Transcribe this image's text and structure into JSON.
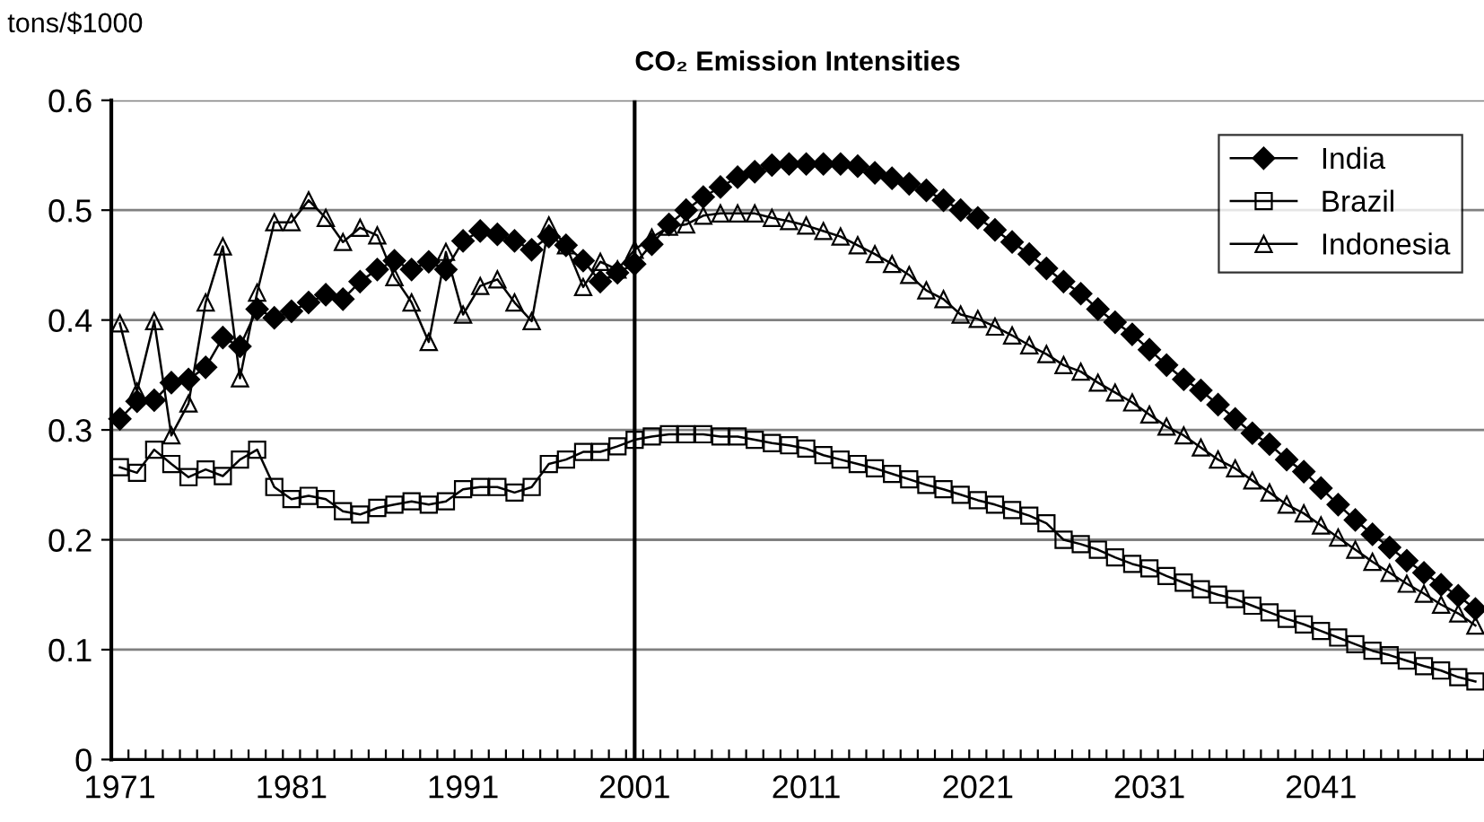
{
  "chart_data": {
    "type": "line",
    "title": "CO₂ Emission Intensities",
    "ylabel": "tons/$1000",
    "categories": [
      "1971",
      null,
      null,
      null,
      null,
      null,
      null,
      null,
      null,
      null,
      "1981",
      null,
      null,
      null,
      null,
      null,
      null,
      null,
      null,
      null,
      "1991",
      null,
      null,
      null,
      null,
      null,
      null,
      null,
      null,
      null,
      "2001",
      null,
      null,
      null,
      null,
      null,
      null,
      null,
      null,
      null,
      "2011",
      null,
      null,
      null,
      null,
      null,
      null,
      null,
      null,
      null,
      "2021",
      null,
      null,
      null,
      null,
      null,
      null,
      null,
      null,
      null,
      "2031",
      null,
      null,
      null,
      null,
      null,
      null,
      null,
      null,
      null,
      "2041",
      null,
      null,
      null,
      null,
      null,
      null,
      null,
      null,
      null
    ],
    "series": [
      {
        "name": "India",
        "color": "#000000",
        "marker": "diamond",
        "values": [
          0.31,
          0.326,
          0.327,
          0.343,
          0.346,
          0.357,
          0.384,
          0.376,
          0.41,
          0.402,
          0.408,
          0.416,
          0.423,
          0.419,
          0.435,
          0.446,
          0.454,
          0.446,
          0.453,
          0.446,
          0.472,
          0.481,
          0.478,
          0.472,
          0.464,
          0.476,
          0.468,
          0.454,
          0.435,
          0.443,
          0.451,
          0.469,
          0.487,
          0.5,
          0.512,
          0.521,
          0.53,
          0.535,
          0.541,
          0.542,
          0.542,
          0.542,
          0.542,
          0.54,
          0.534,
          0.529,
          0.524,
          0.518,
          0.509,
          0.5,
          0.493,
          0.482,
          0.471,
          0.46,
          0.447,
          0.435,
          0.424,
          0.41,
          0.398,
          0.387,
          0.373,
          0.359,
          0.346,
          0.336,
          0.323,
          0.31,
          0.297,
          0.287,
          0.273,
          0.262,
          0.247,
          0.232,
          0.218,
          0.205,
          0.193,
          0.181,
          0.17,
          0.159,
          0.149,
          0.137
        ]
      },
      {
        "name": "Brazil",
        "color": "#000000",
        "marker": "square",
        "values": [
          0.266,
          0.261,
          0.282,
          0.269,
          0.257,
          0.264,
          0.258,
          0.273,
          0.282,
          0.248,
          0.237,
          0.24,
          0.237,
          0.226,
          0.223,
          0.229,
          0.232,
          0.235,
          0.232,
          0.235,
          0.246,
          0.248,
          0.248,
          0.243,
          0.248,
          0.269,
          0.273,
          0.28,
          0.28,
          0.285,
          0.291,
          0.294,
          0.296,
          0.296,
          0.296,
          0.294,
          0.294,
          0.291,
          0.288,
          0.286,
          0.283,
          0.277,
          0.273,
          0.269,
          0.265,
          0.26,
          0.255,
          0.25,
          0.246,
          0.241,
          0.236,
          0.232,
          0.227,
          0.222,
          0.215,
          0.2,
          0.196,
          0.191,
          0.184,
          0.178,
          0.174,
          0.167,
          0.161,
          0.155,
          0.15,
          0.146,
          0.14,
          0.134,
          0.128,
          0.123,
          0.117,
          0.111,
          0.105,
          0.099,
          0.095,
          0.09,
          0.085,
          0.081,
          0.075,
          0.071
        ]
      },
      {
        "name": "Indonesia",
        "color": "#000000",
        "marker": "triangle",
        "values": [
          0.397,
          0.335,
          0.399,
          0.295,
          0.324,
          0.416,
          0.467,
          0.347,
          0.425,
          0.489,
          0.489,
          0.509,
          0.493,
          0.471,
          0.484,
          0.477,
          0.439,
          0.416,
          0.38,
          0.462,
          0.405,
          0.431,
          0.437,
          0.416,
          0.399,
          0.486,
          0.468,
          0.43,
          0.453,
          0.446,
          0.464,
          0.475,
          0.485,
          0.487,
          0.495,
          0.497,
          0.497,
          0.497,
          0.493,
          0.49,
          0.486,
          0.481,
          0.476,
          0.468,
          0.46,
          0.451,
          0.441,
          0.427,
          0.419,
          0.405,
          0.401,
          0.394,
          0.386,
          0.377,
          0.369,
          0.359,
          0.353,
          0.343,
          0.334,
          0.325,
          0.314,
          0.303,
          0.295,
          0.284,
          0.273,
          0.265,
          0.254,
          0.243,
          0.232,
          0.224,
          0.213,
          0.202,
          0.191,
          0.18,
          0.17,
          0.16,
          0.151,
          0.141,
          0.133,
          0.122
        ]
      }
    ],
    "ylim": [
      0,
      0.6
    ],
    "yticks": [
      0,
      0.1,
      0.2,
      0.3,
      0.4,
      0.5,
      0.6
    ],
    "grid": "y",
    "legend": "top right",
    "ref_lines": [
      {
        "axis": "x",
        "value": "2001",
        "color": "#000000",
        "line_style": "solid"
      }
    ]
  }
}
